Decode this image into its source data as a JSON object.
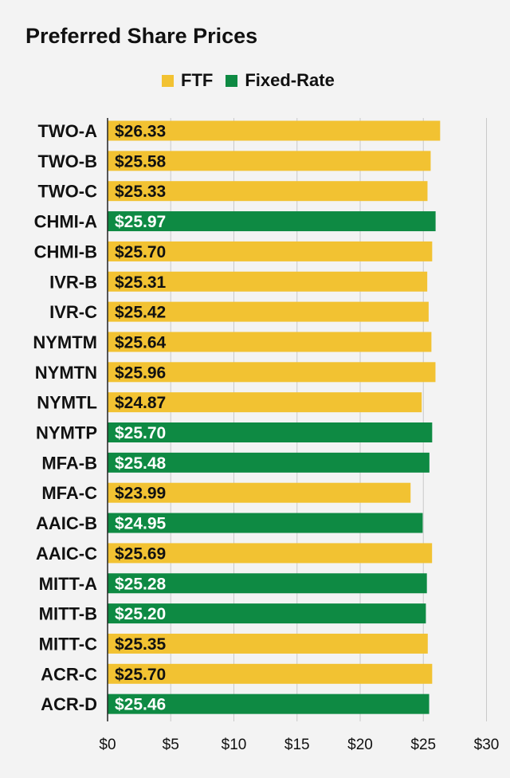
{
  "colors": {
    "FTF": "#f2c232",
    "Fixed-Rate": "#0e8a43",
    "grid": "#c9c9c9",
    "axis": "#222222",
    "text": "#111111"
  },
  "chart_data": {
    "type": "bar",
    "orientation": "horizontal",
    "title": "Preferred Share Prices",
    "xlabel": "",
    "ylabel": "",
    "xlim": [
      0,
      30
    ],
    "xticks": [
      0,
      5,
      10,
      15,
      20,
      25,
      30
    ],
    "tick_labels": [
      "$0",
      "$5",
      "$10",
      "$15",
      "$20",
      "$25",
      "$30"
    ],
    "grid": true,
    "legend": {
      "position": "top-center",
      "entries": [
        {
          "name": "FTF",
          "color": "#f2c232"
        },
        {
          "name": "Fixed-Rate",
          "color": "#0e8a43"
        }
      ]
    },
    "categories": [
      "TWO-A",
      "TWO-B",
      "TWO-C",
      "CHMI-A",
      "CHMI-B",
      "IVR-B",
      "IVR-C",
      "NYMTM",
      "NYMTN",
      "NYMTL",
      "NYMTP",
      "MFA-B",
      "MFA-C",
      "AAIC-B",
      "AAIC-C",
      "MITT-A",
      "MITT-B",
      "MITT-C",
      "ACR-C",
      "ACR-D"
    ],
    "values": [
      26.33,
      25.58,
      25.33,
      25.97,
      25.7,
      25.31,
      25.42,
      25.64,
      25.96,
      24.87,
      25.7,
      25.48,
      23.99,
      24.95,
      25.69,
      25.28,
      25.2,
      25.35,
      25.7,
      25.46
    ],
    "value_labels": [
      "$26.33",
      "$25.58",
      "$25.33",
      "$25.97",
      "$25.70",
      "$25.31",
      "$25.42",
      "$25.64",
      "$25.96",
      "$24.87",
      "$25.70",
      "$25.48",
      "$23.99",
      "$24.95",
      "$25.69",
      "$25.28",
      "$25.20",
      "$25.35",
      "$25.70",
      "$25.46"
    ],
    "series_type": [
      "FTF",
      "FTF",
      "FTF",
      "Fixed-Rate",
      "FTF",
      "FTF",
      "FTF",
      "FTF",
      "FTF",
      "FTF",
      "Fixed-Rate",
      "Fixed-Rate",
      "FTF",
      "Fixed-Rate",
      "FTF",
      "Fixed-Rate",
      "Fixed-Rate",
      "FTF",
      "FTF",
      "Fixed-Rate"
    ]
  }
}
